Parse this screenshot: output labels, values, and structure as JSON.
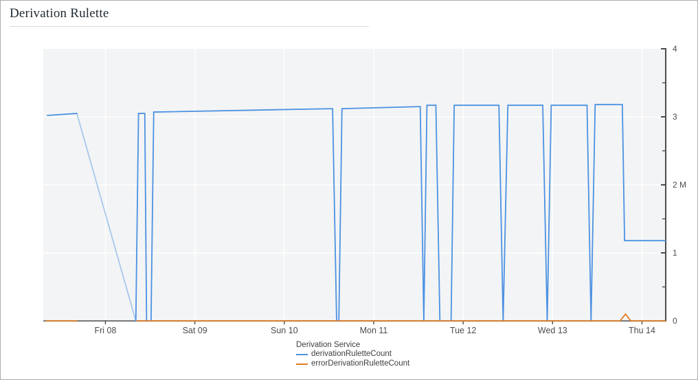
{
  "header": {
    "title": "Derivation Rulette"
  },
  "colors": {
    "window_border": "#ababab",
    "plot_bg": "#f3f4f5",
    "grid": "#ffffff",
    "axis": "#4c4c4c",
    "x_axis_line": "#787878",
    "tick_label": "#4d4d4d",
    "title": "#1f2a33",
    "divider": "#dadada",
    "series_blue": "#4b91e2",
    "series_orange": "#e07c23"
  },
  "chart_data": {
    "type": "line",
    "title": "Derivation Rulette",
    "x_axis": {
      "tick_labels": [
        "Fri 08",
        "Sat 09",
        "Sun 10",
        "Mon 11",
        "Tue 12",
        "Wed 13",
        "Thu 14"
      ],
      "tick_values": [
        8,
        9,
        10,
        11,
        12,
        13,
        14
      ],
      "range": [
        7.305,
        14.265
      ]
    },
    "y_axis": {
      "side": "right",
      "range": [
        0,
        4
      ],
      "major_ticks": [
        0,
        1,
        2,
        3,
        4
      ],
      "tick_labels": [
        "0",
        "1",
        "2 M",
        "3",
        "4"
      ],
      "minor_step": 0.5,
      "unit": "millions"
    },
    "grid": {
      "vertical_at": [
        8,
        9,
        10,
        11,
        12,
        13,
        14
      ],
      "horizontal_at": [
        1,
        2,
        3
      ]
    },
    "legend_title": "Derivation Service",
    "legend_position": "bottom",
    "series": [
      {
        "name": "derivationRuletteCount",
        "color": "#4b91e2",
        "faded_segments": [
          1
        ],
        "gap_segments": [],
        "points": [
          [
            7.35,
            3.02
          ],
          [
            7.68,
            3.05
          ],
          [
            8.34,
            0.0
          ],
          [
            8.37,
            3.05
          ],
          [
            8.44,
            3.05
          ],
          [
            8.46,
            0.0
          ],
          [
            8.51,
            0.0
          ],
          [
            8.54,
            3.07
          ],
          [
            10.54,
            3.12
          ],
          [
            10.585,
            0.0
          ],
          [
            10.61,
            0.0
          ],
          [
            10.645,
            3.12
          ],
          [
            11.52,
            3.15
          ],
          [
            11.56,
            0.0
          ],
          [
            11.595,
            3.17
          ],
          [
            11.695,
            3.17
          ],
          [
            11.74,
            0.0
          ],
          [
            11.865,
            0.0
          ],
          [
            11.9,
            3.17
          ],
          [
            12.4,
            3.17
          ],
          [
            12.447,
            0.0
          ],
          [
            12.5,
            3.17
          ],
          [
            12.89,
            3.17
          ],
          [
            12.94,
            0.0
          ],
          [
            12.985,
            3.17
          ],
          [
            13.385,
            3.17
          ],
          [
            13.43,
            0.0
          ],
          [
            13.476,
            3.18
          ],
          [
            13.78,
            3.18
          ],
          [
            13.805,
            1.18
          ],
          [
            14.26,
            1.18
          ]
        ]
      },
      {
        "name": "errorDerivationRuletteCount",
        "color": "#e07c23",
        "faded_segments": [],
        "gap_segments": [
          1
        ],
        "points": [
          [
            7.34,
            0.0
          ],
          [
            7.68,
            0.0
          ],
          [
            8.35,
            0.0
          ],
          [
            13.755,
            0.0
          ],
          [
            13.815,
            0.1
          ],
          [
            13.875,
            0.0
          ],
          [
            14.262,
            0.0
          ]
        ]
      }
    ]
  },
  "legend": {
    "title": "Derivation Service",
    "items": [
      {
        "label": "derivationRuletteCount",
        "color": "#4b91e2"
      },
      {
        "label": "errorDerivationRuletteCount",
        "color": "#e07c23"
      }
    ]
  }
}
